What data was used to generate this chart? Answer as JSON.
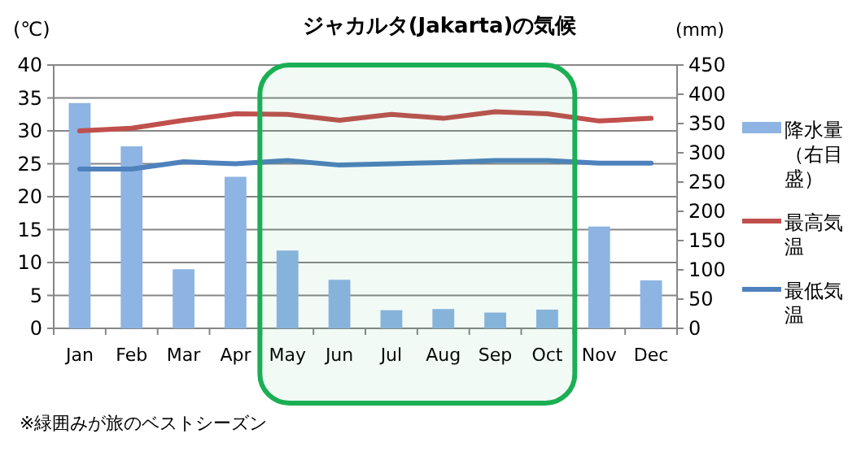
{
  "chart_data": {
    "type": "bar",
    "title": "ジャカルタ(Jakarta)の気候",
    "ylabel": "(℃)",
    "y2label": "(mm)",
    "categories": [
      "Jan",
      "Feb",
      "Mar",
      "Apr",
      "May",
      "Jun",
      "Jul",
      "Aug",
      "Sep",
      "Oct",
      "Nov",
      "Dec"
    ],
    "series": [
      {
        "name": "降水量（右目盛）",
        "axis": "y2",
        "color": "#8db4e2",
        "values": [
          385,
          311,
          101,
          259,
          133,
          83,
          31,
          33,
          27,
          32,
          174,
          82
        ]
      },
      {
        "name": "最高気温",
        "type": "line",
        "color": "#c0504d",
        "values": [
          30.0,
          30.4,
          31.6,
          32.6,
          32.5,
          31.6,
          32.5,
          31.9,
          32.9,
          32.6,
          31.5,
          31.9
        ]
      },
      {
        "name": "最低気温",
        "type": "line",
        "color": "#4f81bd",
        "values": [
          24.2,
          24.2,
          25.3,
          25.0,
          25.5,
          24.8,
          25.0,
          25.2,
          25.5,
          25.5,
          25.1,
          25.1
        ]
      }
    ],
    "ylim": [
      0,
      40
    ],
    "yticks": [
      0,
      5,
      10,
      15,
      20,
      25,
      30,
      35,
      40
    ],
    "y2lim": [
      0,
      450
    ],
    "y2ticks": [
      0,
      50,
      100,
      150,
      200,
      250,
      300,
      350,
      400,
      450
    ],
    "grid": "y",
    "legend": "right",
    "marker": "none",
    "bands": [
      {
        "axis": "x",
        "from": "May",
        "to": "Oct",
        "color": "#1aaf54"
      }
    ],
    "annotations": [
      "※緑囲みが旅のベストシーズン"
    ]
  }
}
